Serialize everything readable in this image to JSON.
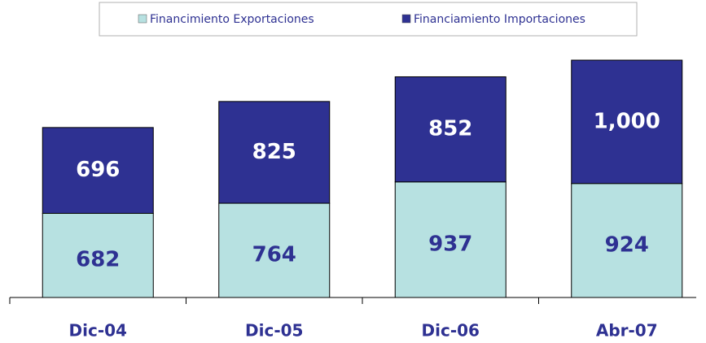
{
  "chart_data": {
    "type": "stacked_bar",
    "categories": [
      "Dic-04",
      "Dic-05",
      "Dic-06",
      "Abr-07"
    ],
    "series": [
      {
        "name": "Financimiento Exportaciones",
        "color": "#b7e1e1",
        "values": [
          682,
          764,
          937,
          924
        ]
      },
      {
        "name": "Financiamiento Importaciones",
        "color": "#2e3192",
        "values": [
          696,
          825,
          852,
          1000
        ],
        "value_labels": [
          "696",
          "825",
          "852",
          "1,000"
        ]
      }
    ],
    "legend": "top"
  }
}
